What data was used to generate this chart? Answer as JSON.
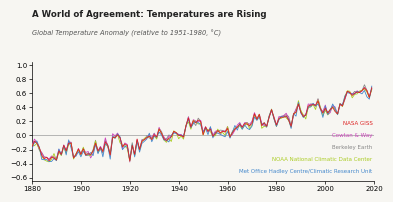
{
  "title": "A World of Agreement: Temperatures are Rising",
  "subtitle": "Global Temperature Anomaly (relative to 1951-1980, °C)",
  "xlim": [
    1880,
    2020
  ],
  "ylim": [
    -0.65,
    1.05
  ],
  "yticks": [
    -0.6,
    -0.4,
    -0.2,
    0.0,
    0.2,
    0.4,
    0.6,
    0.8,
    1.0
  ],
  "xticks": [
    1880,
    1900,
    1920,
    1940,
    1960,
    1980,
    2000,
    2020
  ],
  "background_color": "#f7f6f2",
  "zero_line_color": "#aaaaaa",
  "legend": [
    {
      "label": "NASA GISS",
      "color": "#dd2222"
    },
    {
      "label": "Cowtan & Way",
      "color": "#cc44bb"
    },
    {
      "label": "Berkeley Earth",
      "color": "#888888"
    },
    {
      "label": "NOAA National Climatic Data Center",
      "color": "#aacc22"
    },
    {
      "label": "Met Office Hadley Centre/Climatic Research Unit",
      "color": "#4488cc"
    }
  ],
  "nasa_giss": [
    -0.16,
    -0.08,
    -0.11,
    -0.17,
    -0.28,
    -0.33,
    -0.31,
    -0.36,
    -0.31,
    -0.32,
    -0.35,
    -0.22,
    -0.27,
    -0.14,
    -0.22,
    -0.11,
    -0.11,
    -0.32,
    -0.27,
    -0.19,
    -0.27,
    -0.19,
    -0.28,
    -0.26,
    -0.27,
    -0.22,
    -0.11,
    -0.22,
    -0.17,
    -0.23,
    -0.09,
    -0.14,
    -0.28,
    -0.03,
    -0.03,
    0.01,
    -0.03,
    -0.16,
    -0.12,
    -0.14,
    -0.36,
    -0.14,
    -0.27,
    -0.05,
    -0.2,
    -0.08,
    -0.06,
    -0.03,
    -0.01,
    -0.06,
    0.01,
    -0.02,
    0.09,
    0.03,
    -0.05,
    -0.07,
    -0.04,
    -0.02,
    0.06,
    0.04,
    0.0,
    0.0,
    -0.02,
    0.14,
    0.25,
    0.12,
    0.21,
    0.18,
    0.22,
    0.2,
    0.01,
    0.12,
    0.06,
    0.09,
    -0.01,
    0.03,
    0.07,
    0.04,
    0.06,
    0.05,
    0.1,
    -0.02,
    0.04,
    0.09,
    0.12,
    0.16,
    0.12,
    0.17,
    0.16,
    0.14,
    0.17,
    0.31,
    0.23,
    0.3,
    0.14,
    0.18,
    0.13,
    0.26,
    0.37,
    0.25,
    0.15,
    0.24,
    0.26,
    0.26,
    0.28,
    0.22,
    0.13,
    0.31,
    0.33,
    0.45,
    0.33,
    0.27,
    0.29,
    0.42,
    0.43,
    0.44,
    0.43,
    0.49,
    0.38,
    0.32,
    0.39,
    0.32,
    0.37,
    0.4,
    0.34,
    0.31,
    0.45,
    0.42,
    0.53,
    0.63,
    0.61,
    0.57,
    0.6,
    0.62,
    0.61,
    0.64,
    0.68,
    0.64,
    0.54,
    0.68
  ]
}
